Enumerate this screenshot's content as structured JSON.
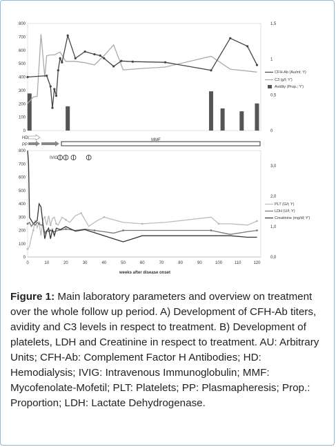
{
  "chart_data": [
    {
      "type": "line",
      "panel": "A",
      "x_range": [
        0,
        122
      ],
      "y_left": {
        "ticks": [
          0,
          100,
          200,
          300,
          400,
          500,
          600,
          700,
          800
        ],
        "ylim": [
          0,
          800
        ]
      },
      "y_right": {
        "ticks": [
          "0",
          "0,5",
          "1",
          "1,5"
        ],
        "ylim": [
          0,
          1.5
        ]
      },
      "series": [
        {
          "name": "CFH-Ab (Au/ml; Y)",
          "axis": "left",
          "color": "#444444",
          "marker": "dot",
          "points": [
            [
              0,
              400
            ],
            [
              10,
              410
            ],
            [
              12,
              330
            ],
            [
              13,
              170
            ],
            [
              14,
              310
            ],
            [
              15,
              260
            ],
            [
              16,
              450
            ],
            [
              17,
              540
            ],
            [
              18,
              510
            ],
            [
              21,
              710
            ],
            [
              25,
              540
            ],
            [
              30,
              590
            ],
            [
              35,
              570
            ],
            [
              38,
              560
            ],
            [
              40,
              540
            ],
            [
              45,
              480
            ],
            [
              49,
              520
            ],
            [
              55,
              515
            ],
            [
              72,
              510
            ],
            [
              96,
              450
            ],
            [
              106,
              690
            ],
            [
              115,
              630
            ],
            [
              120,
              490
            ]
          ]
        },
        {
          "name": "C3 (g/l; Y')",
          "axis": "right",
          "color": "#aaaaaa",
          "marker": "none",
          "points": [
            [
              0,
              0.38
            ],
            [
              3,
              0.47
            ],
            [
              5,
              0.48
            ],
            [
              7,
              1.35
            ],
            [
              9,
              0.75
            ],
            [
              10,
              1.05
            ],
            [
              12,
              1.06
            ],
            [
              14,
              1.06
            ],
            [
              17,
              1.1
            ],
            [
              20,
              0.97
            ],
            [
              25,
              0.97
            ],
            [
              30,
              0.95
            ],
            [
              35,
              0.92
            ],
            [
              40,
              1.05
            ],
            [
              45,
              1.2
            ],
            [
              50,
              0.85
            ],
            [
              60,
              0.87
            ],
            [
              72,
              0.89
            ],
            [
              96,
              1.04
            ],
            [
              106,
              0.86
            ],
            [
              120,
              0.82
            ]
          ]
        }
      ],
      "bars": {
        "name": "Avidity (Prop.; Y')",
        "axis": "right",
        "color": "#555555",
        "points": [
          [
            1,
            0.52
          ],
          [
            21,
            0.34
          ],
          [
            96,
            0.55
          ],
          [
            102,
            0.31
          ],
          [
            112,
            0.27
          ],
          [
            120,
            0.38
          ]
        ]
      }
    },
    {
      "type": "line",
      "panel": "B",
      "x_range": [
        0,
        122
      ],
      "xticks": [
        "0",
        "10",
        "20",
        "30",
        "40",
        "50",
        "60",
        "70",
        "80",
        "90",
        "100",
        "110",
        "120"
      ],
      "xlabel": "weeks after disease onset",
      "y_left": {
        "ticks": [
          0,
          100,
          200,
          300,
          400,
          500,
          600,
          700,
          800
        ],
        "ylim": [
          0,
          800
        ]
      },
      "y_right": {
        "ticks": [
          "0,0",
          "1,0",
          "2,0",
          "3,0"
        ],
        "ylim": [
          0,
          3.5
        ]
      },
      "series": [
        {
          "name": "PLT (G/l; Y)",
          "axis": "left",
          "color": "#bbbbbb",
          "points": [
            [
              0,
              60
            ],
            [
              1,
              80
            ],
            [
              2,
              150
            ],
            [
              3,
              200
            ],
            [
              4,
              280
            ],
            [
              5,
              220
            ],
            [
              6,
              260
            ],
            [
              7,
              160
            ],
            [
              8,
              280
            ],
            [
              9,
              300
            ],
            [
              10,
              240
            ],
            [
              11,
              310
            ],
            [
              12,
              240
            ],
            [
              13,
              290
            ],
            [
              14,
              300
            ],
            [
              15,
              250
            ],
            [
              16,
              240
            ],
            [
              18,
              300
            ],
            [
              20,
              280
            ],
            [
              22,
              260
            ],
            [
              25,
              310
            ],
            [
              28,
              330
            ],
            [
              32,
              230
            ],
            [
              36,
              270
            ],
            [
              40,
              300
            ],
            [
              45,
              280
            ],
            [
              50,
              260
            ],
            [
              60,
              250
            ],
            [
              72,
              260
            ],
            [
              96,
              300
            ],
            [
              100,
              250
            ],
            [
              106,
              250
            ],
            [
              115,
              240
            ],
            [
              120,
              270
            ]
          ]
        },
        {
          "name": "LDH (U/l; Y)",
          "axis": "left",
          "color": "#777777",
          "points": [
            [
              0,
              250
            ],
            [
              1,
              260
            ],
            [
              2,
              230
            ],
            [
              3,
              250
            ],
            [
              4,
              240
            ],
            [
              5,
              260
            ],
            [
              6,
              250
            ],
            [
              7,
              240
            ],
            [
              8,
              240
            ],
            [
              9,
              180
            ],
            [
              10,
              200
            ],
            [
              11,
              190
            ],
            [
              12,
              200
            ],
            [
              14,
              190
            ],
            [
              16,
              200
            ],
            [
              20,
              210
            ],
            [
              25,
              200
            ],
            [
              30,
              210
            ],
            [
              35,
              200
            ],
            [
              40,
              190
            ],
            [
              45,
              180
            ],
            [
              50,
              200
            ],
            [
              60,
              200
            ],
            [
              72,
              200
            ],
            [
              96,
              200
            ],
            [
              106,
              170
            ],
            [
              115,
              190
            ],
            [
              120,
              200
            ]
          ]
        },
        {
          "name": "Creatinine (mg/dl; Y')",
          "axis": "right",
          "color": "#333333",
          "points": [
            [
              0,
              3.5
            ],
            [
              0.5,
              3.1
            ],
            [
              1,
              1.3
            ],
            [
              2,
              1.2
            ],
            [
              3,
              1.1
            ],
            [
              5,
              1.2
            ],
            [
              6,
              1.75
            ],
            [
              7,
              1.65
            ],
            [
              8,
              1.1
            ],
            [
              9,
              0.6
            ],
            [
              10,
              0.85
            ],
            [
              11,
              0.95
            ],
            [
              12,
              0.6
            ],
            [
              13,
              0.9
            ],
            [
              14,
              0.7
            ],
            [
              15,
              0.95
            ],
            [
              17,
              0.9
            ],
            [
              20,
              1.0
            ],
            [
              25,
              0.85
            ],
            [
              30,
              0.9
            ],
            [
              35,
              0.8
            ],
            [
              40,
              0.7
            ],
            [
              45,
              0.6
            ],
            [
              50,
              0.5
            ],
            [
              55,
              0.6
            ],
            [
              60,
              0.7
            ],
            [
              72,
              0.7
            ],
            [
              96,
              0.7
            ],
            [
              106,
              0.7
            ],
            [
              115,
              0.65
            ],
            [
              120,
              0.65
            ]
          ]
        }
      ],
      "treatment": {
        "hd": "HD",
        "pp": "PP",
        "mmf": "MMF",
        "ivig": "IVIG",
        "ivig_weeks": [
          17,
          20,
          24,
          32
        ]
      }
    }
  ],
  "caption": {
    "label": "Figure 1:",
    "text": " Main laboratory parameters and overview on treatment over the whole follow up period. A)    Development of CFH-Ab titers, avidity and C3 levels in respect to treatment. B)    Development of platelets, LDH and Creatinine in respect to treatment. AU: Arbitrary Units; CFH-Ab: Complement Factor H Antibodies; HD: Hemodialysis; IVIG: Intravenous Immunoglobulin; MMF: Mycofenolate-Mofetil; PLT: Platelets; PP: Plasmapheresis; Prop.: Proportion; LDH: Lactate Dehydrogenase."
  }
}
